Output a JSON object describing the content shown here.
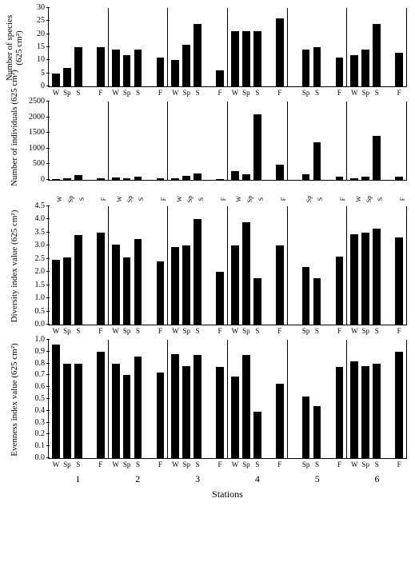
{
  "stations": [
    1,
    2,
    3,
    4,
    5,
    6
  ],
  "seasons": [
    "W",
    "Sp",
    "S",
    "F"
  ],
  "xlabel": "Stations",
  "panels": [
    {
      "key": "species",
      "ylabel": "Number of species\n(625 cm²)",
      "height": 98,
      "ymax": 30,
      "yticks": [
        0,
        5,
        10,
        15,
        20,
        25,
        30
      ],
      "rot_x": false,
      "data": [
        [
          5,
          7,
          15,
          null,
          15
        ],
        [
          14,
          12,
          14,
          null,
          11
        ],
        [
          10,
          16,
          24,
          null,
          6
        ],
        [
          21,
          21,
          21,
          null,
          26
        ],
        [
          null,
          14,
          15,
          null,
          11
        ],
        [
          12,
          14,
          24,
          null,
          13
        ]
      ]
    },
    {
      "key": "individuals",
      "ylabel": "Number of individuals (625 cm²)",
      "height": 98,
      "ymax": 2500,
      "yticks": [
        0,
        500,
        1000,
        1500,
        2000,
        2500
      ],
      "rot_x": true,
      "data": [
        [
          30,
          40,
          150,
          null,
          60
        ],
        [
          80,
          60,
          110,
          null,
          60
        ],
        [
          40,
          120,
          200,
          null,
          30
        ],
        [
          280,
          180,
          2100,
          null,
          480
        ],
        [
          null,
          170,
          1200,
          null,
          100
        ],
        [
          60,
          100,
          1400,
          null,
          100
        ]
      ]
    },
    {
      "key": "diversity",
      "ylabel": "Diversity index value (625 cm²)",
      "height": 148,
      "ymax": 4.5,
      "yticks": [
        0.0,
        0.5,
        1.0,
        1.5,
        2.0,
        2.5,
        3.0,
        3.5,
        4.0,
        4.5
      ],
      "rot_x": false,
      "data": [
        [
          2.45,
          2.55,
          3.4,
          null,
          3.5
        ],
        [
          3.05,
          2.55,
          3.25,
          null,
          2.4
        ],
        [
          2.95,
          3.0,
          4.0,
          null,
          2.0
        ],
        [
          3.0,
          3.9,
          1.75,
          null,
          3.0
        ],
        [
          null,
          2.2,
          1.75,
          null,
          2.6
        ],
        [
          3.45,
          3.5,
          3.65,
          null,
          3.3
        ]
      ]
    },
    {
      "key": "evenness",
      "ylabel": "Evenness index value (625 cm²)",
      "height": 148,
      "ymax": 1.0,
      "yticks": [
        0.0,
        0.1,
        0.2,
        0.3,
        0.4,
        0.5,
        0.6,
        0.7,
        0.8,
        0.9,
        1.0
      ],
      "rot_x": false,
      "data": [
        [
          0.96,
          0.8,
          0.8,
          null,
          0.9
        ],
        [
          0.8,
          0.7,
          0.86,
          null,
          0.72
        ],
        [
          0.88,
          0.78,
          0.87,
          null,
          0.77
        ],
        [
          0.69,
          0.87,
          0.39,
          null,
          0.63
        ],
        [
          null,
          0.52,
          0.44,
          null,
          0.77
        ],
        [
          0.82,
          0.78,
          0.8,
          null,
          0.9
        ]
      ]
    }
  ]
}
